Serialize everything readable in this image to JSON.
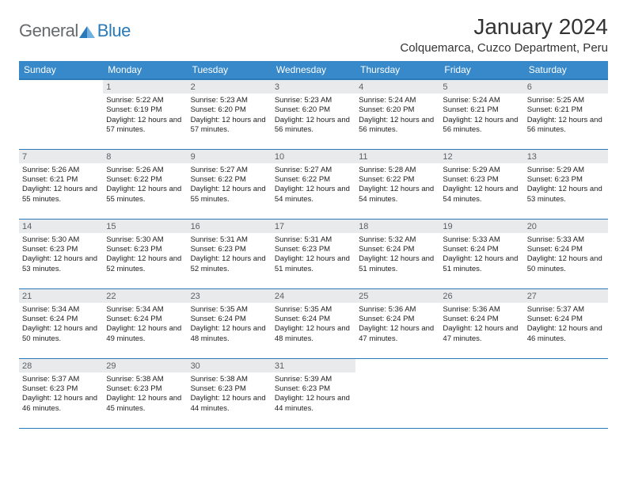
{
  "brand": {
    "part1": "General",
    "part2": "Blue"
  },
  "title": "January 2024",
  "location": "Colquemarca, Cuzco Department, Peru",
  "colors": {
    "header_bg": "#3789c9",
    "rule": "#2a7ab9",
    "band_bg": "#e9eaeb",
    "text": "#333333"
  },
  "day_headers": [
    "Sunday",
    "Monday",
    "Tuesday",
    "Wednesday",
    "Thursday",
    "Friday",
    "Saturday"
  ],
  "weeks": [
    [
      {
        "n": "",
        "lines": []
      },
      {
        "n": "1",
        "lines": [
          "Sunrise: 5:22 AM",
          "Sunset: 6:19 PM",
          "Daylight: 12 hours and 57 minutes."
        ]
      },
      {
        "n": "2",
        "lines": [
          "Sunrise: 5:23 AM",
          "Sunset: 6:20 PM",
          "Daylight: 12 hours and 57 minutes."
        ]
      },
      {
        "n": "3",
        "lines": [
          "Sunrise: 5:23 AM",
          "Sunset: 6:20 PM",
          "Daylight: 12 hours and 56 minutes."
        ]
      },
      {
        "n": "4",
        "lines": [
          "Sunrise: 5:24 AM",
          "Sunset: 6:20 PM",
          "Daylight: 12 hours and 56 minutes."
        ]
      },
      {
        "n": "5",
        "lines": [
          "Sunrise: 5:24 AM",
          "Sunset: 6:21 PM",
          "Daylight: 12 hours and 56 minutes."
        ]
      },
      {
        "n": "6",
        "lines": [
          "Sunrise: 5:25 AM",
          "Sunset: 6:21 PM",
          "Daylight: 12 hours and 56 minutes."
        ]
      }
    ],
    [
      {
        "n": "7",
        "lines": [
          "Sunrise: 5:26 AM",
          "Sunset: 6:21 PM",
          "Daylight: 12 hours and 55 minutes."
        ]
      },
      {
        "n": "8",
        "lines": [
          "Sunrise: 5:26 AM",
          "Sunset: 6:22 PM",
          "Daylight: 12 hours and 55 minutes."
        ]
      },
      {
        "n": "9",
        "lines": [
          "Sunrise: 5:27 AM",
          "Sunset: 6:22 PM",
          "Daylight: 12 hours and 55 minutes."
        ]
      },
      {
        "n": "10",
        "lines": [
          "Sunrise: 5:27 AM",
          "Sunset: 6:22 PM",
          "Daylight: 12 hours and 54 minutes."
        ]
      },
      {
        "n": "11",
        "lines": [
          "Sunrise: 5:28 AM",
          "Sunset: 6:22 PM",
          "Daylight: 12 hours and 54 minutes."
        ]
      },
      {
        "n": "12",
        "lines": [
          "Sunrise: 5:29 AM",
          "Sunset: 6:23 PM",
          "Daylight: 12 hours and 54 minutes."
        ]
      },
      {
        "n": "13",
        "lines": [
          "Sunrise: 5:29 AM",
          "Sunset: 6:23 PM",
          "Daylight: 12 hours and 53 minutes."
        ]
      }
    ],
    [
      {
        "n": "14",
        "lines": [
          "Sunrise: 5:30 AM",
          "Sunset: 6:23 PM",
          "Daylight: 12 hours and 53 minutes."
        ]
      },
      {
        "n": "15",
        "lines": [
          "Sunrise: 5:30 AM",
          "Sunset: 6:23 PM",
          "Daylight: 12 hours and 52 minutes."
        ]
      },
      {
        "n": "16",
        "lines": [
          "Sunrise: 5:31 AM",
          "Sunset: 6:23 PM",
          "Daylight: 12 hours and 52 minutes."
        ]
      },
      {
        "n": "17",
        "lines": [
          "Sunrise: 5:31 AM",
          "Sunset: 6:23 PM",
          "Daylight: 12 hours and 51 minutes."
        ]
      },
      {
        "n": "18",
        "lines": [
          "Sunrise: 5:32 AM",
          "Sunset: 6:24 PM",
          "Daylight: 12 hours and 51 minutes."
        ]
      },
      {
        "n": "19",
        "lines": [
          "Sunrise: 5:33 AM",
          "Sunset: 6:24 PM",
          "Daylight: 12 hours and 51 minutes."
        ]
      },
      {
        "n": "20",
        "lines": [
          "Sunrise: 5:33 AM",
          "Sunset: 6:24 PM",
          "Daylight: 12 hours and 50 minutes."
        ]
      }
    ],
    [
      {
        "n": "21",
        "lines": [
          "Sunrise: 5:34 AM",
          "Sunset: 6:24 PM",
          "Daylight: 12 hours and 50 minutes."
        ]
      },
      {
        "n": "22",
        "lines": [
          "Sunrise: 5:34 AM",
          "Sunset: 6:24 PM",
          "Daylight: 12 hours and 49 minutes."
        ]
      },
      {
        "n": "23",
        "lines": [
          "Sunrise: 5:35 AM",
          "Sunset: 6:24 PM",
          "Daylight: 12 hours and 48 minutes."
        ]
      },
      {
        "n": "24",
        "lines": [
          "Sunrise: 5:35 AM",
          "Sunset: 6:24 PM",
          "Daylight: 12 hours and 48 minutes."
        ]
      },
      {
        "n": "25",
        "lines": [
          "Sunrise: 5:36 AM",
          "Sunset: 6:24 PM",
          "Daylight: 12 hours and 47 minutes."
        ]
      },
      {
        "n": "26",
        "lines": [
          "Sunrise: 5:36 AM",
          "Sunset: 6:24 PM",
          "Daylight: 12 hours and 47 minutes."
        ]
      },
      {
        "n": "27",
        "lines": [
          "Sunrise: 5:37 AM",
          "Sunset: 6:24 PM",
          "Daylight: 12 hours and 46 minutes."
        ]
      }
    ],
    [
      {
        "n": "28",
        "lines": [
          "Sunrise: 5:37 AM",
          "Sunset: 6:23 PM",
          "Daylight: 12 hours and 46 minutes."
        ]
      },
      {
        "n": "29",
        "lines": [
          "Sunrise: 5:38 AM",
          "Sunset: 6:23 PM",
          "Daylight: 12 hours and 45 minutes."
        ]
      },
      {
        "n": "30",
        "lines": [
          "Sunrise: 5:38 AM",
          "Sunset: 6:23 PM",
          "Daylight: 12 hours and 44 minutes."
        ]
      },
      {
        "n": "31",
        "lines": [
          "Sunrise: 5:39 AM",
          "Sunset: 6:23 PM",
          "Daylight: 12 hours and 44 minutes."
        ]
      },
      {
        "n": "",
        "lines": []
      },
      {
        "n": "",
        "lines": []
      },
      {
        "n": "",
        "lines": []
      }
    ]
  ]
}
